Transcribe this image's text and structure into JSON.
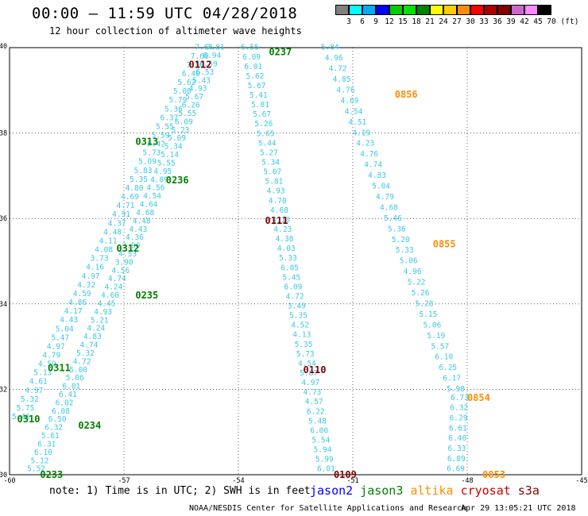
{
  "title": "00:00 – 11:59 UTC 04/28/2018",
  "subtitle": "12 hour collection of altimeter wave heights",
  "colorbar": {
    "colors": [
      "#808080",
      "#00ffff",
      "#00aaff",
      "#0000ff",
      "#00cc00",
      "#00e400",
      "#008000",
      "#ffff00",
      "#ffcc00",
      "#ff8c00",
      "#ff0000",
      "#aa0000",
      "#800000",
      "#cc66cc",
      "#ff88ff",
      "#000000"
    ],
    "ticks": [
      "3",
      "6",
      "9",
      "12",
      "15",
      "18",
      "21",
      "24",
      "27",
      "30",
      "33",
      "36",
      "39",
      "42",
      "45",
      "70",
      "(ft)"
    ]
  },
  "map": {
    "lon_range": [
      -60,
      -45
    ],
    "lat_range": [
      30,
      40
    ],
    "x_ticks": [
      "-60",
      "-57",
      "-54",
      "-51",
      "-48",
      "-45"
    ],
    "y_ticks": [
      "40",
      "38",
      "36",
      "34",
      "32",
      "30"
    ],
    "grid": true
  },
  "observation_color": "#3cc8e6",
  "passes": [
    {
      "time": "0237",
      "color": "#008000",
      "lon": -52.9,
      "lat": 39.9,
      "values": [
        "6.55",
        "6.09",
        "6.01",
        "5.62",
        "5.67",
        "5.41",
        "5.81",
        "5.67",
        "5.26",
        "5.65",
        "5.44",
        "5.27",
        "5.34",
        "5.07",
        "5.81",
        "4.93",
        "4.70",
        "4.68",
        "4.18",
        "4.23",
        "4.38",
        "4.03",
        "5.33",
        "6.05",
        "5.45",
        "6.09",
        "4.72",
        "3.49",
        "5.35",
        "4.52",
        "4.13",
        "5.35",
        "5.73",
        "4.54",
        "5.87",
        "4.97",
        "4.73",
        "4.57",
        "6.22",
        "5.48",
        "6.00",
        "5.54",
        "5.94",
        "5.99",
        "6.01"
      ]
    },
    {
      "time": "0112",
      "color": "#800000",
      "lon": -55.0,
      "lat": 39.6,
      "values": []
    },
    {
      "time": "0111",
      "color": "#800000",
      "lon": -53.0,
      "lat": 35.95,
      "values": []
    },
    {
      "time": "0110",
      "color": "#800000",
      "lon": -52.0,
      "lat": 32.45,
      "values": []
    },
    {
      "time": "0109",
      "color": "#800000",
      "lon": -51.2,
      "lat": 30.0,
      "values": []
    },
    {
      "time": "0856",
      "color": "#ff8c00",
      "lon": -49.6,
      "lat": 38.9,
      "values": [
        "5.84",
        "4.96",
        "4.72",
        "4.85",
        "4.76",
        "4.69",
        "4.54",
        "4.51",
        "4.19",
        "4.23",
        "4.76",
        "4.74",
        "4.83",
        "5.04",
        "4.79",
        "4.68",
        "5.46",
        "5.36",
        "5.20",
        "5.33",
        "5.06",
        "4.96",
        "5.22",
        "5.26",
        "5.28",
        "5.15",
        "5.06",
        "5.19",
        "5.57",
        "6.10",
        "6.25",
        "6.17",
        "5.98"
      ]
    },
    {
      "time": "0855",
      "color": "#ff8c00",
      "lon": -48.6,
      "lat": 35.4,
      "values": []
    },
    {
      "time": "0854",
      "color": "#ff8c00",
      "lon": -47.7,
      "lat": 31.8,
      "values": [
        "6.73",
        "6.32",
        "6.29",
        "6.61",
        "6.40",
        "6.33",
        "6.89",
        "6.69"
      ]
    },
    {
      "time": "0853",
      "color": "#ff8c00",
      "lon": -47.3,
      "lat": 30.0,
      "values": []
    },
    {
      "time": "0313",
      "color": "#008000",
      "lon": -56.4,
      "lat": 37.8,
      "values": [
        "7.66",
        "7.60",
        "7.50",
        "6.40",
        "5.62",
        "5.00",
        "5.79",
        "5.36",
        "6.37",
        "5.55",
        "5.59",
        "5.42",
        "5.73",
        "5.09",
        "5.83",
        "5.35",
        "4.80",
        "4.69",
        "4.71",
        "4.91",
        "4.37",
        "4.48",
        "4.11",
        "4.08",
        "3.73",
        "4.16",
        "4.97",
        "4.32",
        "4.59",
        "4.86",
        "4.17",
        "4.43",
        "5.04",
        "5.47",
        "4.97",
        "4.79",
        "4.59",
        "5.13",
        "4.61",
        "4.97",
        "5.32",
        "5.75",
        "5.46"
      ]
    },
    {
      "time": "0312",
      "color": "#008000",
      "lon": -56.9,
      "lat": 35.3,
      "values": []
    },
    {
      "time": "0311",
      "color": "#008000",
      "lon": -58.7,
      "lat": 32.5,
      "values": []
    },
    {
      "time": "0310",
      "color": "#008000",
      "lon": -59.5,
      "lat": 31.3,
      "values": []
    },
    {
      "time": "0236",
      "color": "#008000",
      "lon": -55.6,
      "lat": 36.9,
      "values": [
        "7.81",
        "6.94",
        "6.59",
        "6.53",
        "5.43",
        "4.93",
        "5.67",
        "6.26",
        "5.55",
        "6.09",
        "5.23",
        "5.09",
        "5.34",
        "5.14",
        "5.55",
        "4.95",
        "4.89",
        "4.56",
        "4.54",
        "4.64",
        "4.68",
        "4.48",
        "4.43",
        "4.36",
        "3.90",
        "4.53",
        "3.90",
        "4.56",
        "4.74",
        "4.24",
        "4.60",
        "4.45",
        "4.93",
        "5.21",
        "4.24",
        "4.83",
        "4.74",
        "5.32",
        "4.72",
        "5.00",
        "5.06",
        "6.01",
        "6.41",
        "6.02",
        "6.08",
        "6.50",
        "6.32",
        "5.61",
        "6.31",
        "6.10",
        "5.12",
        "5.52"
      ]
    },
    {
      "time": "0235",
      "color": "#008000",
      "lon": -56.4,
      "lat": 34.2,
      "values": []
    },
    {
      "time": "0234",
      "color": "#008000",
      "lon": -57.9,
      "lat": 31.15,
      "values": []
    },
    {
      "time": "0233",
      "color": "#008000",
      "lon": -58.9,
      "lat": 30.0,
      "values": []
    }
  ],
  "note": "note: 1) Time is in UTC; 2) SWH is in feet",
  "legend": [
    {
      "label": "jason2",
      "color": "#0000ff"
    },
    {
      "label": "jason3",
      "color": "#008000"
    },
    {
      "label": "altika",
      "color": "#ff8c00"
    },
    {
      "label": "cryosat",
      "color": "#cc0000"
    },
    {
      "label": "s3a",
      "color": "#800000"
    }
  ],
  "footer": {
    "left": "NOAA/NESDIS Center for Satellite Applications and Research",
    "right": "Apr 29 13:05:21 UTC 2018"
  }
}
